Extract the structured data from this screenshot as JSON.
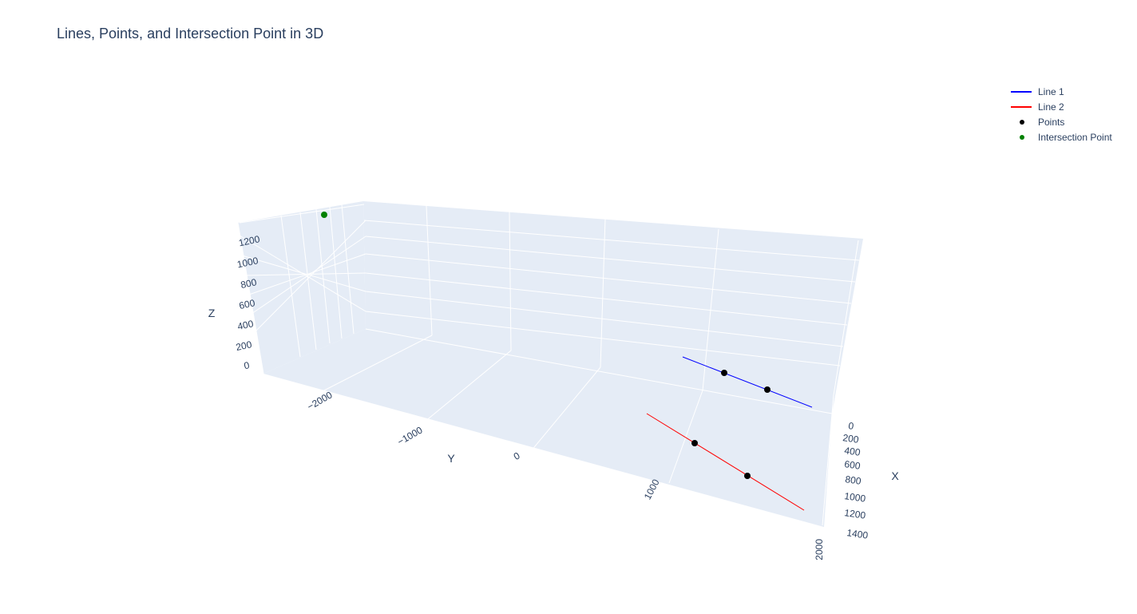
{
  "title": "Lines, Points, and Intersection Point in 3D",
  "colors": {
    "scene_bg": "#e5ecf6",
    "grid": "#ffffff",
    "text": "#2a3f5f",
    "line1": "#0000ff",
    "line2": "#ff0000",
    "points": "#000000",
    "intersection": "#008000"
  },
  "chart_data": {
    "type": "scatter3d",
    "title": "Lines, Points, and Intersection Point in 3D",
    "axes": {
      "x": {
        "label": "X",
        "ticks": [
          "0",
          "200",
          "400",
          "600",
          "800",
          "1000",
          "1200",
          "1400"
        ]
      },
      "y": {
        "label": "Y",
        "ticks": [
          "−2000",
          "−1000",
          "0",
          "1000",
          "2000"
        ]
      },
      "z": {
        "label": "Z",
        "ticks": [
          "0",
          "200",
          "400",
          "600",
          "800",
          "1000",
          "1200"
        ]
      }
    },
    "grid": true,
    "legend_position": "top-right",
    "series": [
      {
        "name": "Line 1",
        "mode": "lines",
        "color": "#0000ff"
      },
      {
        "name": "Line 2",
        "mode": "lines",
        "color": "#ff0000"
      },
      {
        "name": "Points",
        "mode": "markers",
        "color": "#000000",
        "count": 4
      },
      {
        "name": "Intersection Point",
        "mode": "markers",
        "color": "#008000",
        "count": 1
      }
    ]
  }
}
